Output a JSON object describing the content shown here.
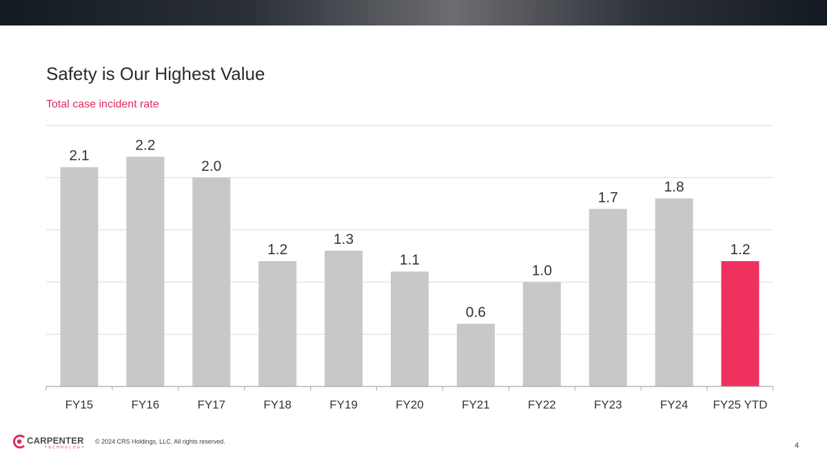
{
  "slide": {
    "title": "Safety is Our Highest Value",
    "subtitle": "Total case incident rate",
    "copyright": "© 2024 CRS Holdings, LLC. All rights reserved.",
    "page_number": "4",
    "logo": {
      "name": "CARPENTER",
      "tagline": "TECHNOLOGY"
    }
  },
  "colors": {
    "bar": "#c8c8c8",
    "highlight_bar": "#f0305f",
    "subtitle": "#e0285a",
    "gridline": "#d9d9d9",
    "axis": "#a6a6a6"
  },
  "chart_data": {
    "type": "bar",
    "title": "Total case incident rate",
    "xlabel": "",
    "ylabel": "",
    "categories": [
      "FY15",
      "FY16",
      "FY17",
      "FY18",
      "FY19",
      "FY20",
      "FY21",
      "FY22",
      "FY23",
      "FY24",
      "FY25 YTD"
    ],
    "values": [
      2.1,
      2.2,
      2.0,
      1.2,
      1.3,
      1.1,
      0.6,
      1.0,
      1.7,
      1.8,
      1.2
    ],
    "data_labels": [
      "2.1",
      "2.2",
      "2.0",
      "1.2",
      "1.3",
      "1.1",
      "0.6",
      "1.0",
      "1.7",
      "1.8",
      "1.2"
    ],
    "highlighted_category": "FY25 YTD",
    "ylim": [
      0,
      2.5
    ],
    "gridlines": [
      0.5,
      1.0,
      1.5,
      2.0,
      2.5
    ],
    "grid": true,
    "legend": "none"
  }
}
